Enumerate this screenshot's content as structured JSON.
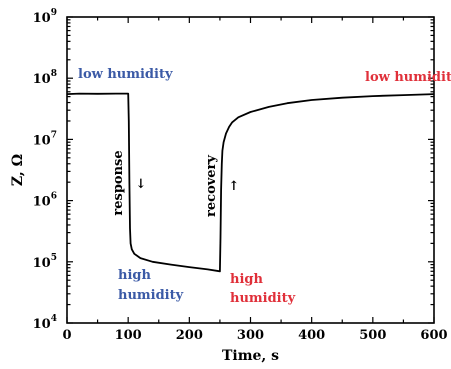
{
  "chart_data": {
    "type": "line",
    "title": "",
    "xlabel": "Time, s",
    "ylabel": "Z, Ω",
    "xlim": [
      0,
      600
    ],
    "ylim_log10": [
      4,
      9
    ],
    "y_scale": "log",
    "xticks": [
      "0",
      "100",
      "200",
      "300",
      "400",
      "500",
      "600"
    ],
    "yticks": [
      {
        "base": "10",
        "exp": "4"
      },
      {
        "base": "10",
        "exp": "5"
      },
      {
        "base": "10",
        "exp": "6"
      },
      {
        "base": "10",
        "exp": "7"
      },
      {
        "base": "10",
        "exp": "8"
      },
      {
        "base": "10",
        "exp": "9"
      }
    ],
    "grid": false,
    "series": [
      {
        "x": [
          0,
          20,
          50,
          80,
          100,
          101,
          102,
          103,
          104,
          106,
          110,
          120,
          140,
          170,
          200,
          230,
          250,
          251,
          252,
          253,
          254,
          256,
          260,
          265,
          270,
          280,
          300,
          330,
          360,
          400,
          450,
          500,
          550,
          600
        ],
        "y": [
          55000000.0,
          56000000.0,
          55500000.0,
          56000000.0,
          56000000.0,
          20000000.0,
          2000000.0,
          350000.0,
          200000.0,
          160000.0,
          135000.0,
          115000.0,
          100000.0,
          90000.0,
          82000.0,
          75000.0,
          70000.0,
          250000.0,
          1500000.0,
          4000000.0,
          6500000.0,
          9000000.0,
          12500000.0,
          16000000.0,
          19000000.0,
          23000000.0,
          28000000.0,
          34000000.0,
          39000000.0,
          44000000.0,
          48000000.0,
          51000000.0,
          53000000.0,
          55000000.0
        ]
      }
    ],
    "annotations": [
      {
        "text": "low humidity",
        "color": "#3b5aa6"
      },
      {
        "text": "low humidity",
        "color": "#e0303a"
      },
      {
        "text": "high",
        "color": "#3b5aa6"
      },
      {
        "text": "humidity",
        "color": "#3b5aa6"
      },
      {
        "text": "high",
        "color": "#e0303a"
      },
      {
        "text": "humidity",
        "color": "#e0303a"
      },
      {
        "text": "response",
        "color": "#000000"
      },
      {
        "text": "recovery",
        "color": "#000000"
      },
      {
        "text": "↓",
        "color": "#000000"
      },
      {
        "text": "↑",
        "color": "#000000"
      }
    ]
  }
}
